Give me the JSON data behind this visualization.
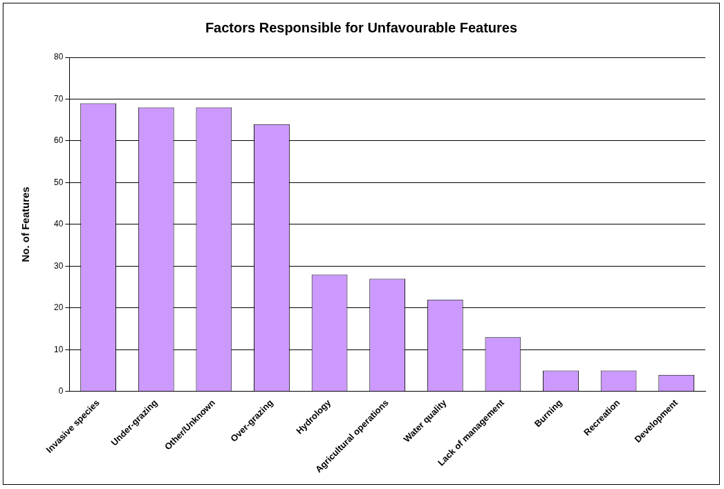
{
  "chart_data": {
    "type": "bar",
    "title": "Factors Responsible for Unfavourable Features",
    "ylabel": "No. of Features",
    "categories": [
      "Invasive species",
      "Under-grazing",
      "Other/Unknown",
      "Over-grazing",
      "Hydrology",
      "Agricultural operations",
      "Water quality",
      "Lack of management",
      "Burning",
      "Recreation",
      "Development"
    ],
    "values": [
      69,
      68,
      68,
      64,
      28,
      27,
      22,
      13,
      5,
      5,
      4
    ],
    "color": "#cc99ff",
    "ylim": [
      0,
      80
    ],
    "yticks": [
      0,
      10,
      20,
      30,
      40,
      50,
      60,
      70,
      80
    ],
    "grid": "y",
    "legend": false
  }
}
